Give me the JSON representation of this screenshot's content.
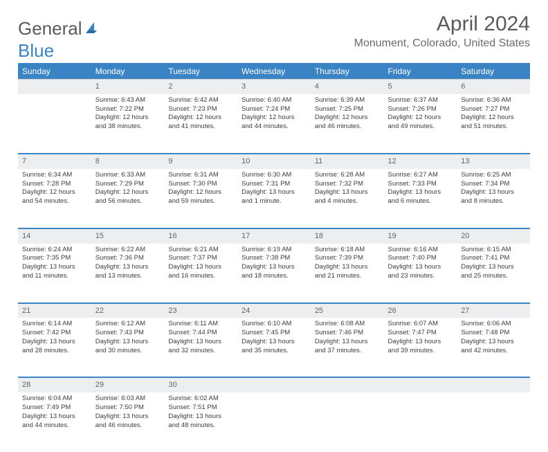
{
  "brand": {
    "part1": "General",
    "part2": "Blue"
  },
  "title": "April 2024",
  "location": "Monument, Colorado, United States",
  "colors": {
    "accent": "#3a83c4",
    "headerText": "#ffffff",
    "dayHeaderBg": "#eceeef",
    "text": "#3c3c3c"
  },
  "weekdays": [
    "Sunday",
    "Monday",
    "Tuesday",
    "Wednesday",
    "Thursday",
    "Friday",
    "Saturday"
  ],
  "weeks": [
    {
      "nums": [
        "",
        "1",
        "2",
        "3",
        "4",
        "5",
        "6"
      ],
      "cells": [
        null,
        {
          "sunrise": "Sunrise: 6:43 AM",
          "sunset": "Sunset: 7:22 PM",
          "daylight": "Daylight: 12 hours and 38 minutes."
        },
        {
          "sunrise": "Sunrise: 6:42 AM",
          "sunset": "Sunset: 7:23 PM",
          "daylight": "Daylight: 12 hours and 41 minutes."
        },
        {
          "sunrise": "Sunrise: 6:40 AM",
          "sunset": "Sunset: 7:24 PM",
          "daylight": "Daylight: 12 hours and 44 minutes."
        },
        {
          "sunrise": "Sunrise: 6:39 AM",
          "sunset": "Sunset: 7:25 PM",
          "daylight": "Daylight: 12 hours and 46 minutes."
        },
        {
          "sunrise": "Sunrise: 6:37 AM",
          "sunset": "Sunset: 7:26 PM",
          "daylight": "Daylight: 12 hours and 49 minutes."
        },
        {
          "sunrise": "Sunrise: 6:36 AM",
          "sunset": "Sunset: 7:27 PM",
          "daylight": "Daylight: 12 hours and 51 minutes."
        }
      ]
    },
    {
      "nums": [
        "7",
        "8",
        "9",
        "10",
        "11",
        "12",
        "13"
      ],
      "cells": [
        {
          "sunrise": "Sunrise: 6:34 AM",
          "sunset": "Sunset: 7:28 PM",
          "daylight": "Daylight: 12 hours and 54 minutes."
        },
        {
          "sunrise": "Sunrise: 6:33 AM",
          "sunset": "Sunset: 7:29 PM",
          "daylight": "Daylight: 12 hours and 56 minutes."
        },
        {
          "sunrise": "Sunrise: 6:31 AM",
          "sunset": "Sunset: 7:30 PM",
          "daylight": "Daylight: 12 hours and 59 minutes."
        },
        {
          "sunrise": "Sunrise: 6:30 AM",
          "sunset": "Sunset: 7:31 PM",
          "daylight": "Daylight: 13 hours and 1 minute."
        },
        {
          "sunrise": "Sunrise: 6:28 AM",
          "sunset": "Sunset: 7:32 PM",
          "daylight": "Daylight: 13 hours and 4 minutes."
        },
        {
          "sunrise": "Sunrise: 6:27 AM",
          "sunset": "Sunset: 7:33 PM",
          "daylight": "Daylight: 13 hours and 6 minutes."
        },
        {
          "sunrise": "Sunrise: 6:25 AM",
          "sunset": "Sunset: 7:34 PM",
          "daylight": "Daylight: 13 hours and 8 minutes."
        }
      ]
    },
    {
      "nums": [
        "14",
        "15",
        "16",
        "17",
        "18",
        "19",
        "20"
      ],
      "cells": [
        {
          "sunrise": "Sunrise: 6:24 AM",
          "sunset": "Sunset: 7:35 PM",
          "daylight": "Daylight: 13 hours and 11 minutes."
        },
        {
          "sunrise": "Sunrise: 6:22 AM",
          "sunset": "Sunset: 7:36 PM",
          "daylight": "Daylight: 13 hours and 13 minutes."
        },
        {
          "sunrise": "Sunrise: 6:21 AM",
          "sunset": "Sunset: 7:37 PM",
          "daylight": "Daylight: 13 hours and 16 minutes."
        },
        {
          "sunrise": "Sunrise: 6:19 AM",
          "sunset": "Sunset: 7:38 PM",
          "daylight": "Daylight: 13 hours and 18 minutes."
        },
        {
          "sunrise": "Sunrise: 6:18 AM",
          "sunset": "Sunset: 7:39 PM",
          "daylight": "Daylight: 13 hours and 21 minutes."
        },
        {
          "sunrise": "Sunrise: 6:16 AM",
          "sunset": "Sunset: 7:40 PM",
          "daylight": "Daylight: 13 hours and 23 minutes."
        },
        {
          "sunrise": "Sunrise: 6:15 AM",
          "sunset": "Sunset: 7:41 PM",
          "daylight": "Daylight: 13 hours and 25 minutes."
        }
      ]
    },
    {
      "nums": [
        "21",
        "22",
        "23",
        "24",
        "25",
        "26",
        "27"
      ],
      "cells": [
        {
          "sunrise": "Sunrise: 6:14 AM",
          "sunset": "Sunset: 7:42 PM",
          "daylight": "Daylight: 13 hours and 28 minutes."
        },
        {
          "sunrise": "Sunrise: 6:12 AM",
          "sunset": "Sunset: 7:43 PM",
          "daylight": "Daylight: 13 hours and 30 minutes."
        },
        {
          "sunrise": "Sunrise: 6:11 AM",
          "sunset": "Sunset: 7:44 PM",
          "daylight": "Daylight: 13 hours and 32 minutes."
        },
        {
          "sunrise": "Sunrise: 6:10 AM",
          "sunset": "Sunset: 7:45 PM",
          "daylight": "Daylight: 13 hours and 35 minutes."
        },
        {
          "sunrise": "Sunrise: 6:08 AM",
          "sunset": "Sunset: 7:46 PM",
          "daylight": "Daylight: 13 hours and 37 minutes."
        },
        {
          "sunrise": "Sunrise: 6:07 AM",
          "sunset": "Sunset: 7:47 PM",
          "daylight": "Daylight: 13 hours and 39 minutes."
        },
        {
          "sunrise": "Sunrise: 6:06 AM",
          "sunset": "Sunset: 7:48 PM",
          "daylight": "Daylight: 13 hours and 42 minutes."
        }
      ]
    },
    {
      "nums": [
        "28",
        "29",
        "30",
        "",
        "",
        "",
        ""
      ],
      "cells": [
        {
          "sunrise": "Sunrise: 6:04 AM",
          "sunset": "Sunset: 7:49 PM",
          "daylight": "Daylight: 13 hours and 44 minutes."
        },
        {
          "sunrise": "Sunrise: 6:03 AM",
          "sunset": "Sunset: 7:50 PM",
          "daylight": "Daylight: 13 hours and 46 minutes."
        },
        {
          "sunrise": "Sunrise: 6:02 AM",
          "sunset": "Sunset: 7:51 PM",
          "daylight": "Daylight: 13 hours and 48 minutes."
        },
        null,
        null,
        null,
        null
      ]
    }
  ]
}
